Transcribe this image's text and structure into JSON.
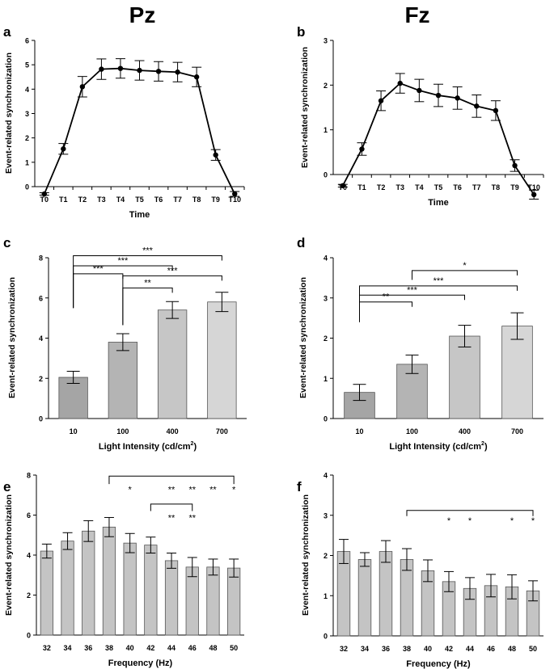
{
  "headers": {
    "left": "Pz",
    "right": "Fz"
  },
  "chart_data": [
    {
      "panel": "a",
      "type": "line",
      "title": "",
      "xlabel": "Time",
      "ylabel": "Event-related synchronization",
      "categories": [
        "T0",
        "T1",
        "T2",
        "T3",
        "T4",
        "T5",
        "T6",
        "T7",
        "T8",
        "T9",
        "T10"
      ],
      "values": [
        -0.3,
        1.55,
        4.1,
        4.82,
        4.85,
        4.77,
        4.73,
        4.7,
        4.5,
        1.3,
        -0.3
      ],
      "errors": [
        0.05,
        0.22,
        0.42,
        0.42,
        0.4,
        0.4,
        0.4,
        0.4,
        0.4,
        0.22,
        0.1
      ],
      "ylim": [
        0,
        6
      ],
      "yticks": [
        "0",
        "1",
        "2",
        "3",
        "4",
        "5",
        "6"
      ],
      "brackets": []
    },
    {
      "panel": "b",
      "type": "line",
      "title": "",
      "xlabel": "Time",
      "ylabel": "Event-related synchronization",
      "categories": [
        "T0",
        "T1",
        "T2",
        "T3",
        "T4",
        "T5",
        "T6",
        "T7",
        "T8",
        "T9",
        "T10"
      ],
      "values": [
        -0.25,
        0.57,
        1.65,
        2.04,
        1.88,
        1.77,
        1.71,
        1.53,
        1.43,
        0.2,
        -0.45
      ],
      "errors": [
        0.03,
        0.14,
        0.22,
        0.22,
        0.25,
        0.25,
        0.25,
        0.25,
        0.22,
        0.13,
        0.1
      ],
      "ylim": [
        0,
        3
      ],
      "yticks": [
        "0",
        "1",
        "2",
        "3"
      ],
      "brackets": []
    },
    {
      "panel": "c",
      "type": "bar",
      "title": "",
      "xlabel": "Light Intensity (cd/cm",
      "xlabel_sup": "2",
      "xlabel_end": ")",
      "ylabel": "Event-related synchronization",
      "categories": [
        "10",
        "100",
        "400",
        "700"
      ],
      "values": [
        2.05,
        3.8,
        5.4,
        5.8
      ],
      "errors": [
        0.3,
        0.42,
        0.42,
        0.48
      ],
      "colors": [
        "#a5a5a5",
        "#b4b4b4",
        "#c6c6c6",
        "#d6d6d6"
      ],
      "ylim": [
        0,
        8
      ],
      "yticks": [
        "0",
        "2",
        "4",
        "6",
        "8"
      ],
      "brackets": [
        {
          "from": 0,
          "to": 3,
          "base": 5.5,
          "level": 8.1,
          "label": "***"
        },
        {
          "from": 0,
          "to": 2,
          "base": 5.5,
          "level": 7.6,
          "label": "***"
        },
        {
          "from": 0,
          "to": 1,
          "base": 5.5,
          "level": 7.2,
          "label": "***"
        },
        {
          "from": 1,
          "to": 3,
          "base": 4.65,
          "level": 7.1,
          "label": "***"
        },
        {
          "from": 1,
          "to": 2,
          "base": 4.65,
          "level": 6.5,
          "label": "**"
        }
      ]
    },
    {
      "panel": "d",
      "type": "bar",
      "title": "",
      "xlabel": "Light Intensity (cd/cm",
      "xlabel_sup": "2",
      "xlabel_end": ")",
      "ylabel": "Event-related synchronization",
      "categories": [
        "10",
        "100",
        "400",
        "700"
      ],
      "values": [
        0.65,
        1.35,
        2.05,
        2.3
      ],
      "errors": [
        0.2,
        0.23,
        0.27,
        0.33
      ],
      "colors": [
        "#a5a5a5",
        "#b4b4b4",
        "#c6c6c6",
        "#d6d6d6"
      ],
      "ylim": [
        0,
        4
      ],
      "yticks": [
        "0",
        "1",
        "2",
        "3",
        "4"
      ],
      "brackets": [
        {
          "from": 1,
          "to": 3,
          "base": 3.45,
          "level": 3.68,
          "label": "*"
        },
        {
          "from": 0,
          "to": 3,
          "base": 2.4,
          "level": 3.3,
          "label": "***"
        },
        {
          "from": 0,
          "to": 2,
          "base": 2.4,
          "level": 3.07,
          "label": "***"
        },
        {
          "from": 0,
          "to": 1,
          "base": 2.4,
          "level": 2.9,
          "label": "**"
        }
      ]
    },
    {
      "panel": "e",
      "type": "bar",
      "title": "",
      "xlabel": "Frequency (Hz)",
      "ylabel": "Event-related synchronization",
      "categories": [
        "32",
        "34",
        "36",
        "38",
        "40",
        "42",
        "44",
        "46",
        "48",
        "50"
      ],
      "values": [
        4.2,
        4.7,
        5.2,
        5.4,
        4.6,
        4.5,
        3.72,
        3.4,
        3.4,
        3.35
      ],
      "errors": [
        0.35,
        0.42,
        0.52,
        0.48,
        0.48,
        0.4,
        0.38,
        0.48,
        0.4,
        0.45
      ],
      "colors": [
        "#c4c4c4",
        "#c4c4c4",
        "#c4c4c4",
        "#c4c4c4",
        "#c4c4c4",
        "#c4c4c4",
        "#c4c4c4",
        "#c4c4c4",
        "#c4c4c4",
        "#c4c4c4"
      ],
      "ylim": [
        0,
        8
      ],
      "yticks": [
        "0",
        "2",
        "4",
        "6",
        "8"
      ],
      "brackets": [
        {
          "from": 3,
          "to": 9,
          "base": 7.55,
          "level": 7.95,
          "label": ""
        },
        {
          "from": 5,
          "to": 7,
          "base": 6.2,
          "level": 6.55,
          "label": ""
        }
      ],
      "stars": [
        {
          "bar": 4,
          "level": 7.45,
          "label": "*"
        },
        {
          "bar": 6,
          "level": 7.45,
          "label": "**"
        },
        {
          "bar": 7,
          "level": 7.45,
          "label": "**"
        },
        {
          "bar": 8,
          "level": 7.45,
          "label": "**"
        },
        {
          "bar": 9,
          "level": 7.45,
          "label": "*"
        },
        {
          "bar": 6,
          "level": 6.05,
          "label": "**"
        },
        {
          "bar": 7,
          "level": 6.05,
          "label": "**"
        }
      ]
    },
    {
      "panel": "f",
      "type": "bar",
      "title": "",
      "xlabel": "Frequency (Hz)",
      "ylabel": "Event-related synchronization",
      "categories": [
        "32",
        "34",
        "36",
        "38",
        "40",
        "42",
        "44",
        "46",
        "48",
        "50"
      ],
      "values": [
        2.1,
        1.9,
        2.1,
        1.9,
        1.62,
        1.35,
        1.18,
        1.25,
        1.22,
        1.12
      ],
      "errors": [
        0.3,
        0.17,
        0.27,
        0.27,
        0.27,
        0.25,
        0.27,
        0.28,
        0.3,
        0.25
      ],
      "colors": [
        "#c4c4c4",
        "#c4c4c4",
        "#c4c4c4",
        "#c4c4c4",
        "#c4c4c4",
        "#c4c4c4",
        "#c4c4c4",
        "#c4c4c4",
        "#c4c4c4",
        "#c4c4c4"
      ],
      "ylim": [
        0,
        4
      ],
      "yticks": [
        "0",
        "1",
        "2",
        "3",
        "4"
      ],
      "brackets": [
        {
          "from": 3,
          "to": 9,
          "base": 2.98,
          "level": 3.12,
          "label": ""
        }
      ],
      "stars": [
        {
          "bar": 5,
          "level": 2.95,
          "label": "*"
        },
        {
          "bar": 6,
          "level": 2.95,
          "label": "*"
        },
        {
          "bar": 8,
          "level": 2.95,
          "label": "*"
        },
        {
          "bar": 9,
          "level": 2.95,
          "label": "*"
        }
      ]
    }
  ]
}
